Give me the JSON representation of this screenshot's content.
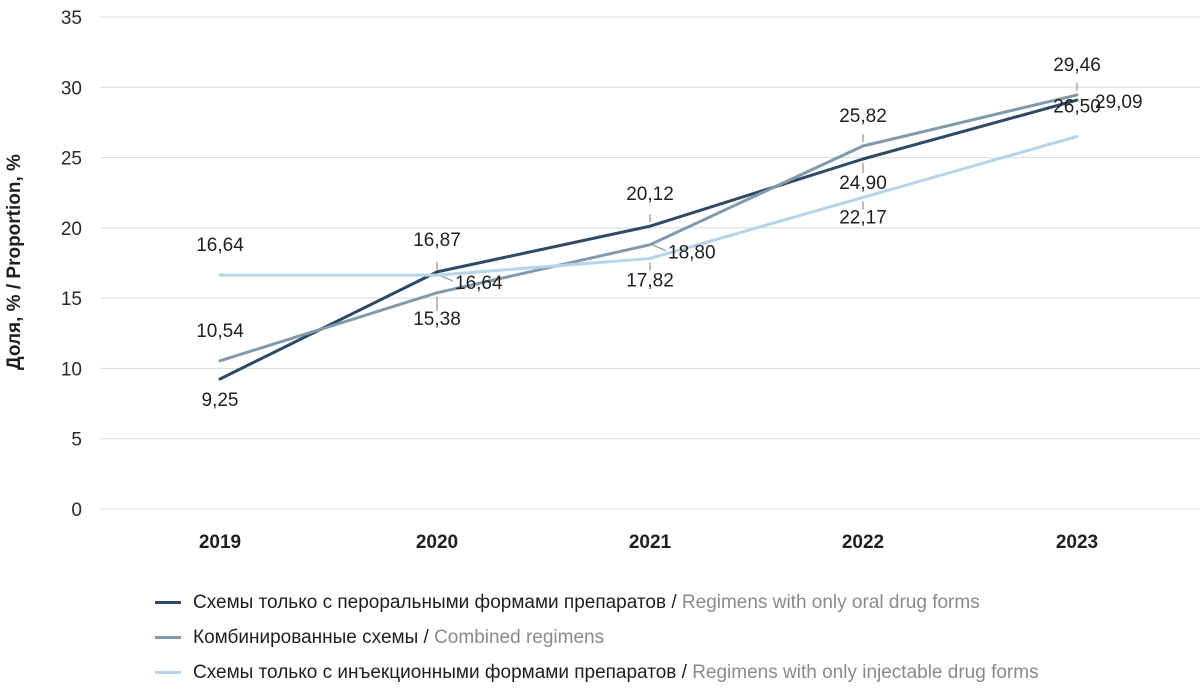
{
  "chart_data": {
    "type": "line",
    "categories": [
      "2019",
      "2020",
      "2021",
      "2022",
      "2023"
    ],
    "ylabel": "Доля, % / Proportion, %",
    "ylim": [
      0,
      35
    ],
    "yticks": [
      0,
      5,
      10,
      15,
      20,
      25,
      30,
      35
    ],
    "grid": true,
    "legend_position": "bottom",
    "series": [
      {
        "name": "Схемы только с пероральными формами препаратов",
        "name_en": "Regimens with only oral drug forms",
        "color": "#2e4a65",
        "values": [
          9.25,
          16.87,
          20.12,
          24.9,
          29.09
        ],
        "labels": [
          "9,25",
          "16,87",
          "20,12",
          "24,90",
          "29,09"
        ]
      },
      {
        "name": "Комбинированные схемы",
        "name_en": "Combined regimens",
        "color": "#7f9aab",
        "values": [
          10.54,
          15.38,
          18.8,
          25.82,
          29.46
        ],
        "labels": [
          "10,54",
          "15,38",
          "18,80",
          "25,82",
          "29,46"
        ]
      },
      {
        "name": "Схемы только с инъекционными формами препаратов",
        "name_en": "Regimens with only injectable drug forms",
        "color": "#b5d4ea",
        "values": [
          16.64,
          16.64,
          17.82,
          22.17,
          26.5
        ],
        "labels": [
          "16,64",
          "16,64",
          "17,82",
          "22,17",
          "26,50"
        ]
      }
    ]
  },
  "legend": {
    "separator": " / "
  }
}
